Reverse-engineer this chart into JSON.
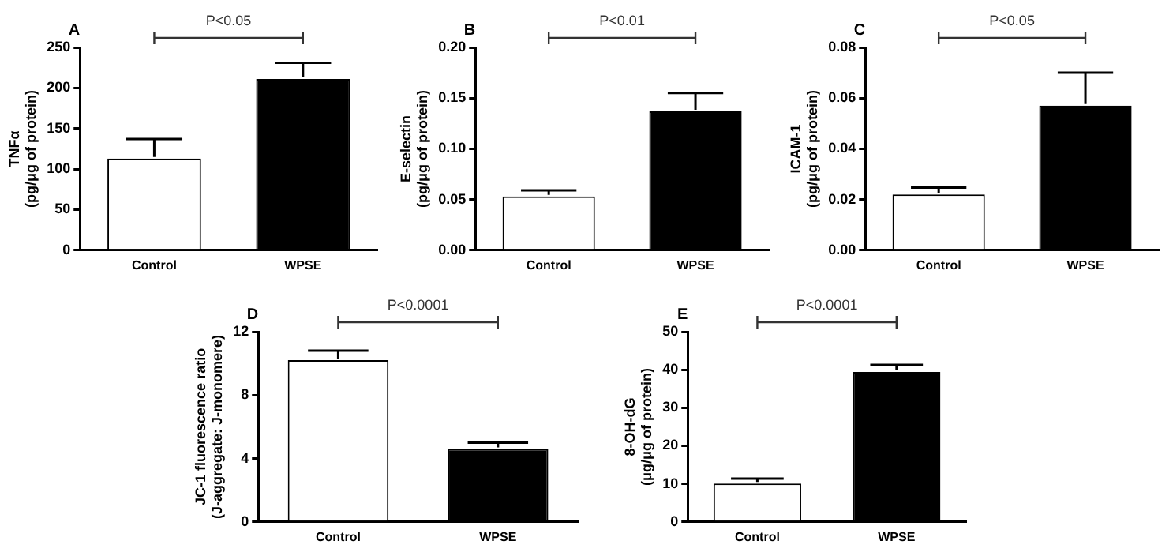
{
  "chart_data": [
    {
      "type": "bar",
      "title": "A",
      "ylabel": "TNFα\n(pg/μg of protein)",
      "categories": [
        "Control",
        "WPSE"
      ],
      "values": [
        113,
        211
      ],
      "errors": [
        24,
        20
      ],
      "colors": [
        "#ffffff",
        "#000000"
      ],
      "ylim": [
        0,
        250
      ],
      "yticks": [
        0,
        50,
        100,
        150,
        200,
        250
      ],
      "annotations": [
        "P<0.05"
      ],
      "grid": false,
      "legend": false
    },
    {
      "type": "bar",
      "title": "B",
      "ylabel": "E-selectin\n(pg/μg of protein)",
      "categories": [
        "Control",
        "WPSE"
      ],
      "values": [
        0.053,
        0.137
      ],
      "errors": [
        0.006,
        0.018
      ],
      "colors": [
        "#ffffff",
        "#000000"
      ],
      "ylim": [
        0,
        0.2
      ],
      "yticks": [
        {
          "value": 0,
          "label": "0.00"
        },
        {
          "value": 0.05,
          "label": "0.05"
        },
        {
          "value": 0.1,
          "label": "0.10"
        },
        {
          "value": 0.15,
          "label": "0.15"
        },
        {
          "value": 0.2,
          "label": "0.20"
        }
      ],
      "annotations": [
        "P<0.01"
      ],
      "grid": false,
      "legend": false
    },
    {
      "type": "bar",
      "title": "C",
      "ylabel": "ICAM-1\n(pg/μg of protein)",
      "categories": [
        "Control",
        "WPSE"
      ],
      "values": [
        0.022,
        0.057
      ],
      "errors": [
        0.0027,
        0.013
      ],
      "colors": [
        "#ffffff",
        "#000000"
      ],
      "ylim": [
        0,
        0.08
      ],
      "yticks": [
        {
          "value": 0,
          "label": "0.00"
        },
        {
          "value": 0.02,
          "label": "0.02"
        },
        {
          "value": 0.04,
          "label": "0.04"
        },
        {
          "value": 0.06,
          "label": "0.06"
        },
        {
          "value": 0.08,
          "label": "0.08"
        }
      ],
      "annotations": [
        "P<0.05"
      ],
      "grid": false,
      "legend": false
    },
    {
      "type": "bar",
      "title": "D",
      "ylabel": "JC-1 fluorescence ratio\n(J-aggregate: J-monomere)",
      "categories": [
        "Control",
        "WPSE"
      ],
      "values": [
        10.2,
        4.6
      ],
      "errors": [
        0.6,
        0.4
      ],
      "colors": [
        "#ffffff",
        "#000000"
      ],
      "ylim": [
        0,
        12
      ],
      "yticks": [
        0,
        4,
        8,
        12
      ],
      "annotations": [
        "P<0.0001"
      ],
      "grid": false,
      "legend": false
    },
    {
      "type": "bar",
      "title": "E",
      "ylabel": "8-OH-dG\n(μg/μg of protein)",
      "categories": [
        "Control",
        "WPSE"
      ],
      "values": [
        10.1,
        39.4
      ],
      "errors": [
        1.3,
        1.9
      ],
      "colors": [
        "#ffffff",
        "#000000"
      ],
      "ylim": [
        0,
        50
      ],
      "yticks": [
        0,
        10,
        20,
        30,
        40,
        50
      ],
      "annotations": [
        "P<0.0001"
      ],
      "grid": false,
      "legend": false
    }
  ]
}
